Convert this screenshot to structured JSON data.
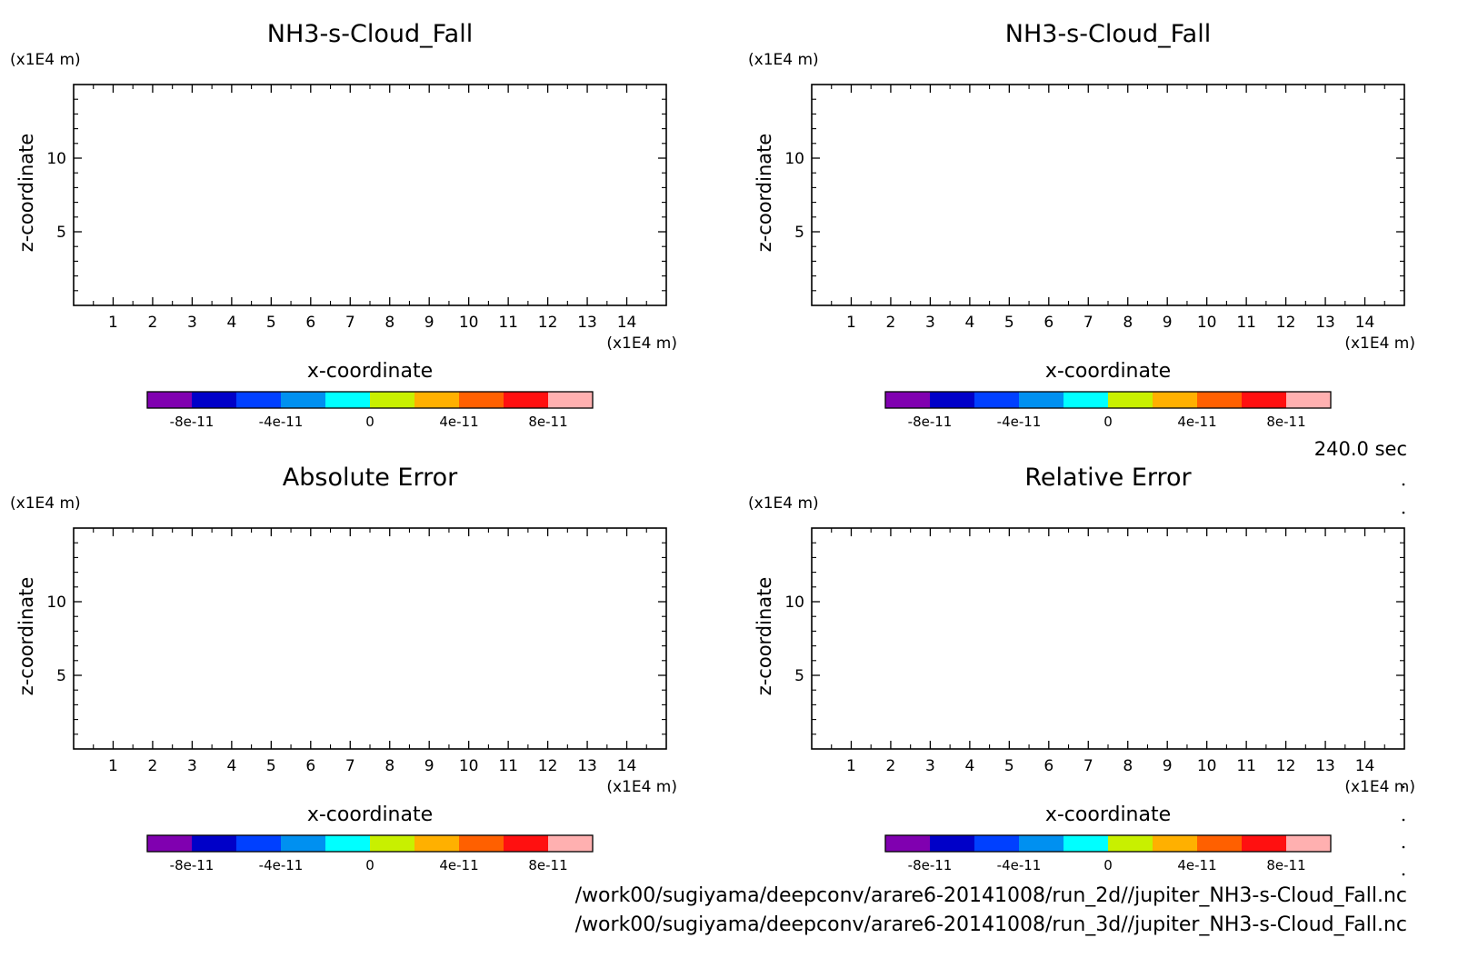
{
  "chart_data": [
    {
      "type": "heatmap",
      "title": "NH3-s-Cloud_Fall",
      "xlabel": "x-coordinate",
      "ylabel": "z-coordinate",
      "x_unit": "(x1E4 m)",
      "y_unit": "(x1E4 m)",
      "xlim": [
        0,
        15
      ],
      "ylim": [
        0,
        15
      ],
      "x_ticks": [
        1,
        2,
        3,
        4,
        5,
        6,
        7,
        8,
        9,
        10,
        11,
        12,
        13,
        14
      ],
      "y_ticks": [
        5,
        10
      ],
      "grid": false,
      "colorbar": {
        "colors": [
          "#8000b0",
          "#0000c8",
          "#0040ff",
          "#0090f0",
          "#00ffff",
          "#c8f000",
          "#ffb000",
          "#ff6000",
          "#ff1010",
          "#ffb0b0"
        ],
        "tick_labels": [
          "-8e-11",
          "-4e-11",
          "0",
          "4e-11",
          "8e-11"
        ],
        "tick_values": [
          -8e-11,
          -4e-11,
          0,
          4e-11,
          8e-11
        ],
        "range": [
          -1e-10,
          1e-10
        ]
      }
    },
    {
      "type": "heatmap",
      "title": "NH3-s-Cloud_Fall",
      "xlabel": "x-coordinate",
      "ylabel": "z-coordinate",
      "x_unit": "(x1E4 m)",
      "y_unit": "(x1E4 m)",
      "xlim": [
        0,
        15
      ],
      "ylim": [
        0,
        15
      ],
      "x_ticks": [
        1,
        2,
        3,
        4,
        5,
        6,
        7,
        8,
        9,
        10,
        11,
        12,
        13,
        14
      ],
      "y_ticks": [
        5,
        10
      ],
      "grid": false,
      "colorbar": {
        "colors": [
          "#8000b0",
          "#0000c8",
          "#0040ff",
          "#0090f0",
          "#00ffff",
          "#c8f000",
          "#ffb000",
          "#ff6000",
          "#ff1010",
          "#ffb0b0"
        ],
        "tick_labels": [
          "-8e-11",
          "-4e-11",
          "0",
          "4e-11",
          "8e-11"
        ],
        "tick_values": [
          -8e-11,
          -4e-11,
          0,
          4e-11,
          8e-11
        ],
        "range": [
          -1e-10,
          1e-10
        ]
      }
    },
    {
      "type": "heatmap",
      "title": "Absolute Error",
      "xlabel": "x-coordinate",
      "ylabel": "z-coordinate",
      "x_unit": "(x1E4 m)",
      "y_unit": "(x1E4 m)",
      "xlim": [
        0,
        15
      ],
      "ylim": [
        0,
        15
      ],
      "x_ticks": [
        1,
        2,
        3,
        4,
        5,
        6,
        7,
        8,
        9,
        10,
        11,
        12,
        13,
        14
      ],
      "y_ticks": [
        5,
        10
      ],
      "grid": false,
      "colorbar": {
        "colors": [
          "#8000b0",
          "#0000c8",
          "#0040ff",
          "#0090f0",
          "#00ffff",
          "#c8f000",
          "#ffb000",
          "#ff6000",
          "#ff1010",
          "#ffb0b0"
        ],
        "tick_labels": [
          "-8e-11",
          "-4e-11",
          "0",
          "4e-11",
          "8e-11"
        ],
        "tick_values": [
          -8e-11,
          -4e-11,
          0,
          4e-11,
          8e-11
        ],
        "range": [
          -1e-10,
          1e-10
        ]
      }
    },
    {
      "type": "heatmap",
      "title": "Relative Error",
      "xlabel": "x-coordinate",
      "ylabel": "z-coordinate",
      "x_unit": "(x1E4 m)",
      "y_unit": "(x1E4 m)",
      "xlim": [
        0,
        15
      ],
      "ylim": [
        0,
        15
      ],
      "x_ticks": [
        1,
        2,
        3,
        4,
        5,
        6,
        7,
        8,
        9,
        10,
        11,
        12,
        13,
        14
      ],
      "y_ticks": [
        5,
        10
      ],
      "grid": false,
      "colorbar": {
        "colors": [
          "#8000b0",
          "#0000c8",
          "#0040ff",
          "#0090f0",
          "#00ffff",
          "#c8f000",
          "#ffb000",
          "#ff6000",
          "#ff1010",
          "#ffb0b0"
        ],
        "tick_labels": [
          "-8e-11",
          "-4e-11",
          "0",
          "4e-11",
          "8e-11"
        ],
        "tick_values": [
          -8e-11,
          -4e-11,
          0,
          4e-11,
          8e-11
        ],
        "range": [
          -1e-10,
          1e-10
        ]
      }
    }
  ],
  "time_label": "240.0 sec",
  "file_paths": [
    "/work00/sugiyama/deepconv/arare6-20141008/run_2d//jupiter_NH3-s-Cloud_Fall.nc",
    "/work00/sugiyama/deepconv/arare6-20141008/run_3d//jupiter_NH3-s-Cloud_Fall.nc"
  ]
}
